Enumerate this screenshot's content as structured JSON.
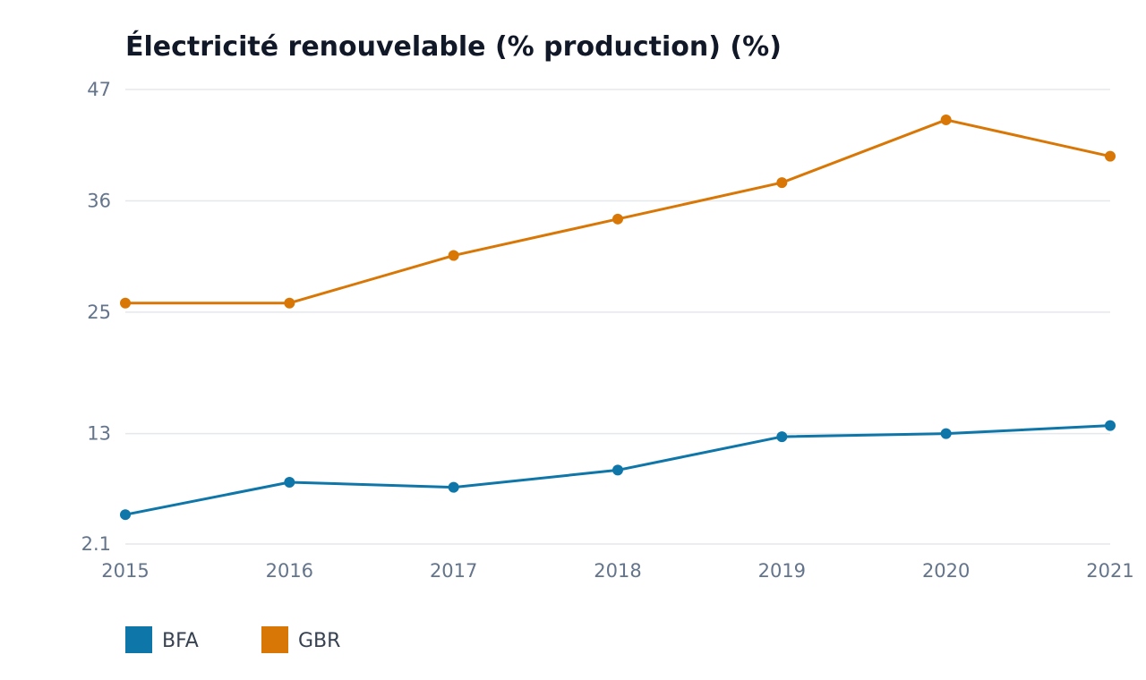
{
  "chart_data": {
    "type": "line",
    "title": "Électricité renouvelable (% production) (%)",
    "xlabel": "",
    "ylabel": "",
    "x": [
      "2015",
      "2016",
      "2017",
      "2018",
      "2019",
      "2020",
      "2021"
    ],
    "y_ticks": [
      "2.1",
      "13",
      "25",
      "36",
      "47"
    ],
    "ylim": [
      2.1,
      47
    ],
    "grid": true,
    "legend_position": "bottom-left",
    "series": [
      {
        "name": "BFA",
        "color": "#0e76a8",
        "values": [
          5.0,
          8.2,
          7.7,
          9.4,
          12.7,
          13.0,
          13.8
        ]
      },
      {
        "name": "GBR",
        "color": "#d97706",
        "values": [
          25.9,
          25.9,
          30.6,
          34.2,
          37.8,
          44.0,
          40.4
        ]
      }
    ]
  }
}
